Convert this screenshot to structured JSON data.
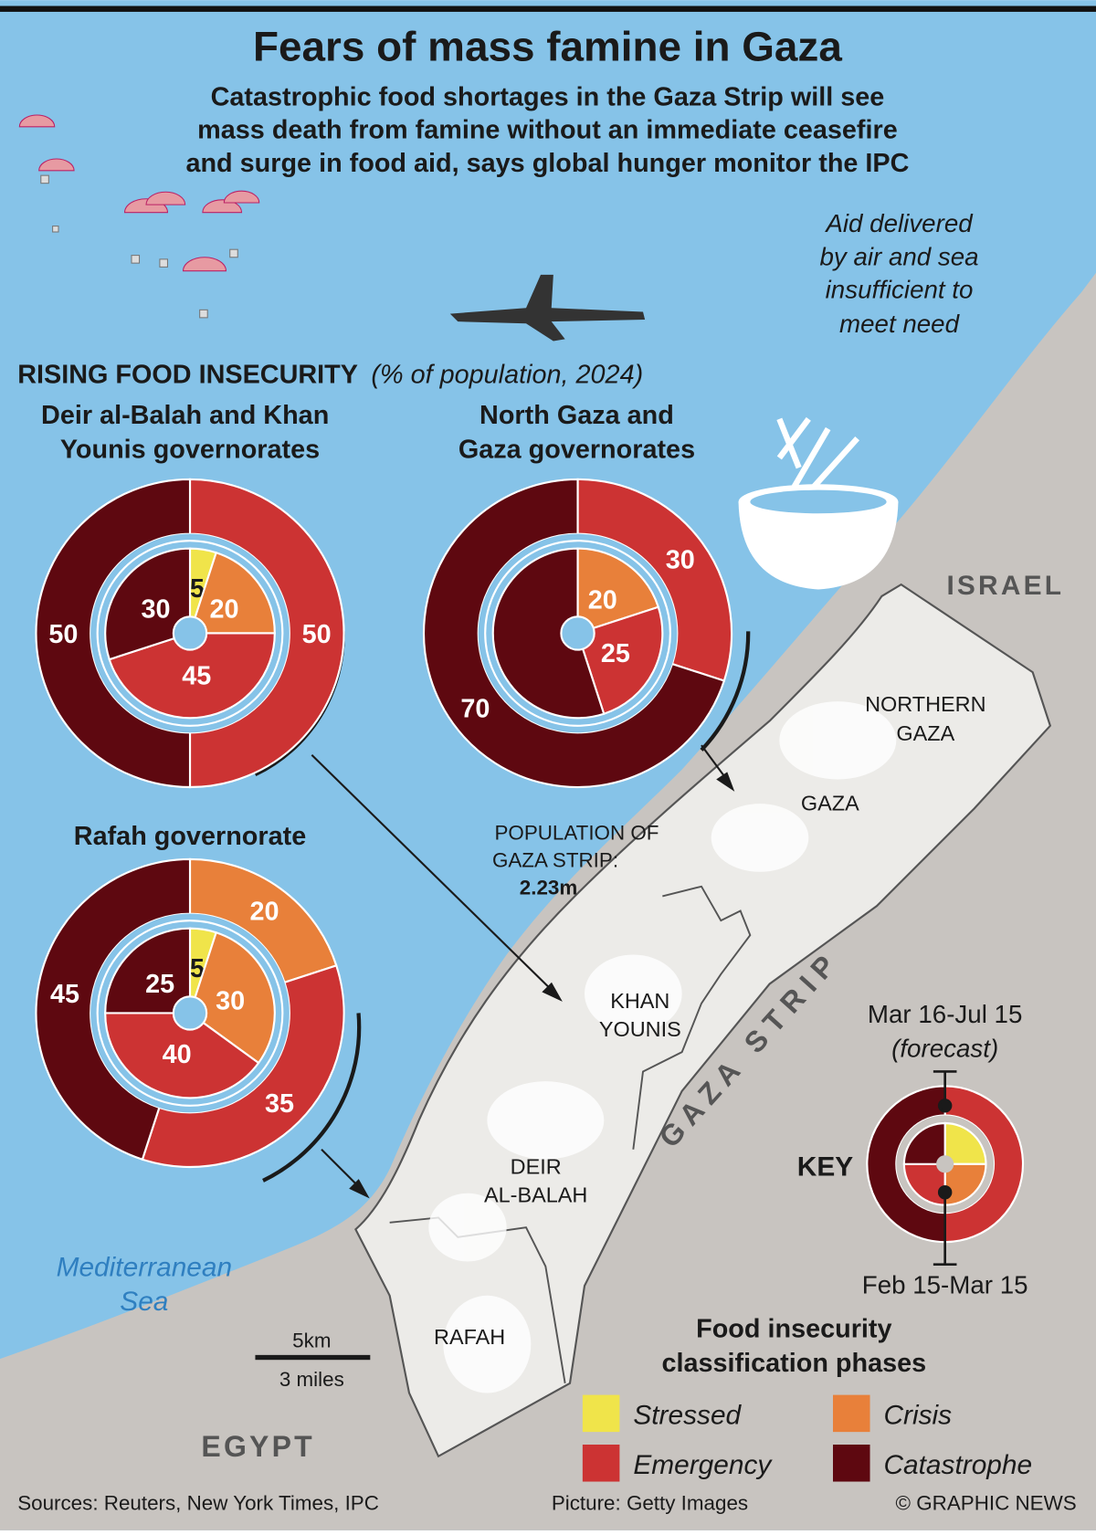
{
  "header": {
    "title": "Fears of mass famine in Gaza",
    "subtitle_lines": [
      "Catastrophic food shortages in the Gaza Strip will see",
      "mass death from famine without an immediate ceasefire",
      "and surge in food aid, says global hunger monitor the IPC"
    ]
  },
  "aid_note_lines": [
    "Aid delivered",
    "by air and sea",
    "insufficient to",
    "meet need"
  ],
  "section": {
    "heading": "RISING FOOD INSECURITY",
    "heading_note": "(% of population, 2024)"
  },
  "population": {
    "lines": [
      "POPULATION OF",
      "GAZA STRIP:"
    ],
    "value": "2.23m"
  },
  "map_labels": {
    "israel": "ISRAEL",
    "egypt": "EGYPT",
    "northern_gaza": [
      "NORTHERN",
      "GAZA"
    ],
    "gaza": "GAZA",
    "khan_younis": [
      "KHAN",
      "YOUNIS"
    ],
    "deir_al_balah": [
      "DEIR",
      "AL-BALAH"
    ],
    "rafah": "RAFAH",
    "gaza_strip": "G A Z A   S T R I P",
    "sea": [
      "Mediterranean",
      "Sea"
    ]
  },
  "scale": {
    "km": "5km",
    "miles": "3 miles"
  },
  "key": {
    "title": "KEY",
    "outer_label": "Mar 16-Jul 15",
    "outer_note": "(forecast)",
    "inner_label": "Feb 15-Mar 15"
  },
  "legend": {
    "title_lines": [
      "Food insecurity",
      "classification phases"
    ],
    "items": [
      {
        "label": "Stressed",
        "color": "#f0e44a"
      },
      {
        "label": "Crisis",
        "color": "#e8803a"
      },
      {
        "label": "Emergency",
        "color": "#cc3333"
      },
      {
        "label": "Catastrophe",
        "color": "#5e0810"
      }
    ]
  },
  "footer": {
    "sources": "Sources: Reuters, New York Times, IPC",
    "picture": "Picture: Getty Images",
    "credit": "© GRAPHIC NEWS"
  },
  "colors": {
    "sea": "#86c3e8",
    "land": "#c8c4c0",
    "strip": "#ecebe8",
    "text": "#1a1a1a"
  },
  "chart_data": [
    {
      "type": "pie",
      "title_lines": [
        "Deir al-Balah and Khan",
        "Younis governorates"
      ],
      "categories": [
        "Stressed",
        "Crisis",
        "Emergency",
        "Catastrophe"
      ],
      "series": [
        {
          "name": "Feb 15-Mar 15",
          "values": [
            5,
            20,
            45,
            30
          ]
        },
        {
          "name": "Mar 16-Jul 15 (forecast)",
          "values": [
            0,
            0,
            50,
            50
          ]
        }
      ]
    },
    {
      "type": "pie",
      "title_lines": [
        "North Gaza and",
        "Gaza governorates"
      ],
      "categories": [
        "Stressed",
        "Crisis",
        "Emergency",
        "Catastrophe"
      ],
      "series": [
        {
          "name": "Feb 15-Mar 15",
          "values": [
            0,
            20,
            25,
            55
          ],
          "unlabeled": [
            "Catastrophe"
          ]
        },
        {
          "name": "Mar 16-Jul 15 (forecast)",
          "values": [
            0,
            0,
            30,
            70
          ]
        }
      ]
    },
    {
      "type": "pie",
      "title_lines": [
        "Rafah governorate"
      ],
      "categories": [
        "Stressed",
        "Crisis",
        "Emergency",
        "Catastrophe"
      ],
      "series": [
        {
          "name": "Feb 15-Mar 15",
          "values": [
            5,
            30,
            40,
            25
          ]
        },
        {
          "name": "Mar 16-Jul 15 (forecast)",
          "values": [
            0,
            20,
            35,
            45
          ]
        }
      ]
    }
  ]
}
